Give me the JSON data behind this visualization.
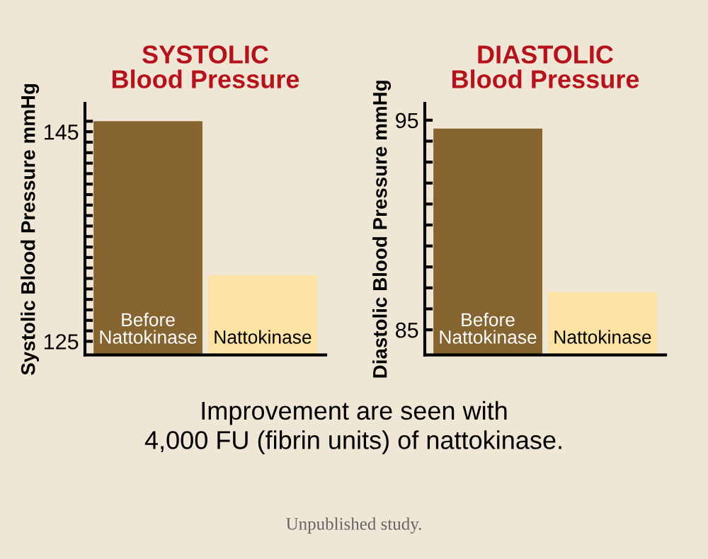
{
  "chart_data": [
    {
      "type": "bar",
      "title": "SYSTOLIC\nBlood Pressure",
      "ylabel": "Systolic Blood Pressure mmHg",
      "categories": [
        "Before\nNattokinase",
        "Nattokinase"
      ],
      "values": [
        146,
        131.3
      ],
      "colors": [
        "#86642f",
        "#fde3a3"
      ],
      "ylim": [
        123.7,
        147.7
      ],
      "yticks": [
        125,
        {
          "value": 126,
          "label": null
        },
        {
          "value": 127,
          "label": null
        },
        {
          "value": 128,
          "label": null
        },
        {
          "value": 129,
          "label": null
        },
        {
          "value": 130,
          "label": null
        },
        {
          "value": 131,
          "label": null
        },
        {
          "value": 132,
          "label": null
        },
        {
          "value": 133,
          "label": null
        },
        {
          "value": 134,
          "label": null
        },
        {
          "value": 135,
          "label": null
        },
        {
          "value": 136,
          "label": null
        },
        {
          "value": 137,
          "label": null
        },
        {
          "value": 138,
          "label": null
        },
        {
          "value": 139,
          "label": null
        },
        {
          "value": 140,
          "label": null
        },
        {
          "value": 141,
          "label": null
        },
        {
          "value": 142,
          "label": null
        },
        {
          "value": 143,
          "label": null
        },
        {
          "value": 144,
          "label": null
        },
        145,
        {
          "value": 146,
          "label": null
        }
      ],
      "annotations": [
        "Improvement are seen with\n4,000 FU (fibrin units) of nattokinase.",
        "Unpublished study."
      ]
    },
    {
      "type": "bar",
      "title": "DIASTOLIC\nBlood Pressure",
      "ylabel": "Diastolic Blood Pressure mmHg",
      "categories": [
        "Before\nNattokinase",
        "Nattokinase"
      ],
      "values": [
        94.6,
        86.8
      ],
      "colors": [
        "#86642f",
        "#fde3a3"
      ],
      "ylim": [
        83.8,
        95.8
      ],
      "yticks": [
        85,
        {
          "value": 86,
          "label": null
        },
        {
          "value": 87,
          "label": null
        },
        {
          "value": 88,
          "label": null
        },
        {
          "value": 89,
          "label": null
        },
        {
          "value": 90,
          "label": null
        },
        {
          "value": 91,
          "label": null
        },
        {
          "value": 92,
          "label": null
        },
        {
          "value": 93,
          "label": null
        },
        {
          "value": 94,
          "label": null
        },
        95
      ]
    }
  ]
}
